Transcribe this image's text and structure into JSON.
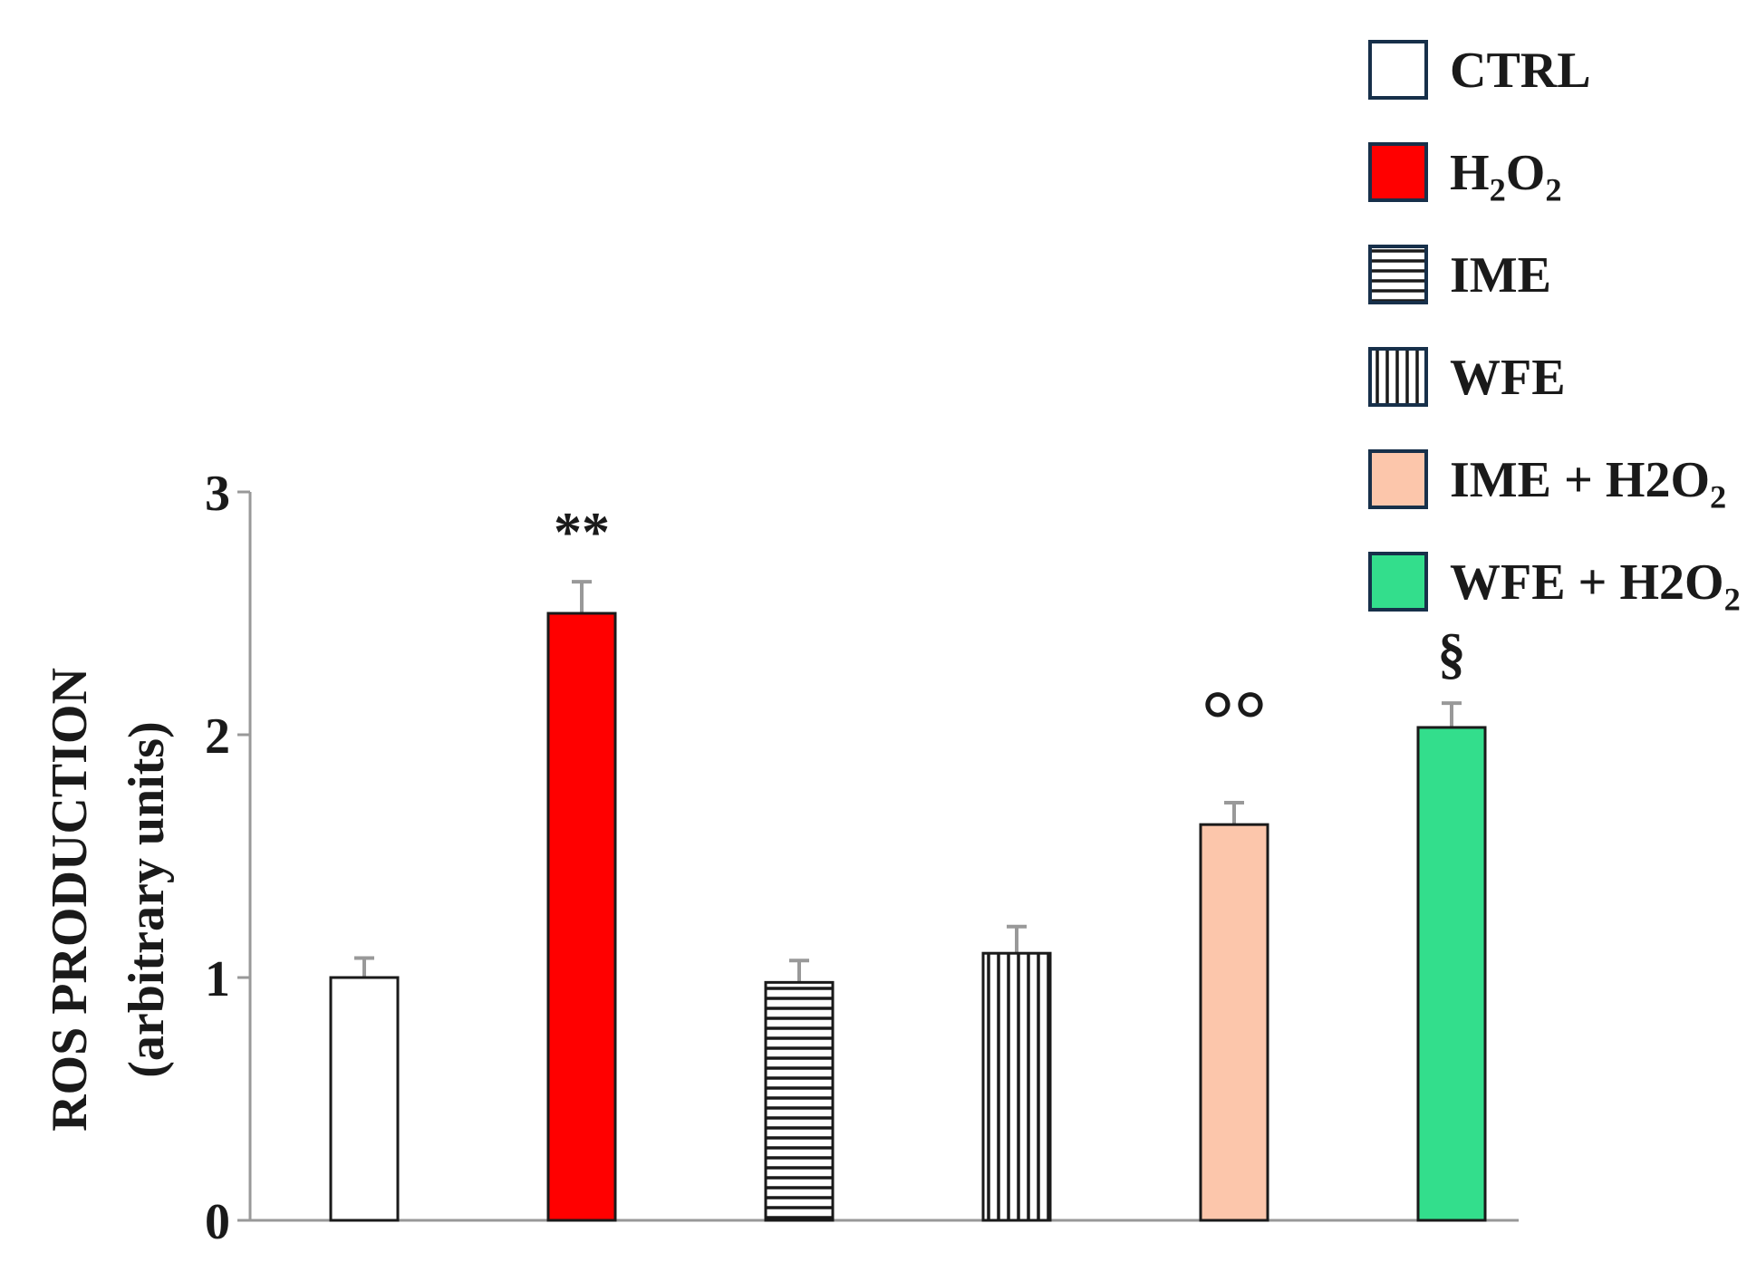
{
  "chart_data": {
    "type": "bar",
    "ylabel_line1": "ROS PRODUCTION",
    "ylabel_line2": "(arbitrary units)",
    "xlabel": "",
    "ylim": [
      0,
      3
    ],
    "yticks": [
      0,
      1,
      2,
      3
    ],
    "grid": false,
    "legend_position": "top-right",
    "categories": [
      "CTRL",
      "H2O2",
      "IME",
      "WFE",
      "IME + H2O2",
      "WFE + H2O2"
    ],
    "values": [
      1.0,
      2.5,
      0.98,
      1.1,
      1.63,
      2.03
    ],
    "errors": [
      0.08,
      0.13,
      0.09,
      0.11,
      0.09,
      0.1
    ],
    "annotations": [
      "",
      "**",
      "",
      "",
      "°°",
      "§"
    ],
    "series_styles": [
      {
        "fill": "#ffffff",
        "pattern": "none"
      },
      {
        "fill": "#ff0000",
        "pattern": "none"
      },
      {
        "fill": "#ffffff",
        "pattern": "horizontal"
      },
      {
        "fill": "#ffffff",
        "pattern": "vertical"
      },
      {
        "fill": "#fcc6ab",
        "pattern": "none"
      },
      {
        "fill": "#33de8c",
        "pattern": "none"
      }
    ],
    "legend": [
      {
        "label": "CTRL",
        "fill": "#ffffff",
        "pattern": "none"
      },
      {
        "label": "H2O2",
        "fill": "#ff0000",
        "pattern": "none"
      },
      {
        "label": "IME",
        "fill": "#ffffff",
        "pattern": "horizontal"
      },
      {
        "label": "WFE",
        "fill": "#ffffff",
        "pattern": "vertical"
      },
      {
        "label": "IME + H2O2",
        "fill": "#fcc6ab",
        "pattern": "none"
      },
      {
        "label": "WFE + H2O2",
        "fill": "#33de8c",
        "pattern": "none"
      }
    ],
    "colors": {
      "bar_border": "#1a1a1a",
      "legend_border": "#17304a",
      "axis": "#999999",
      "error_bar": "#999999",
      "text": "#1a1a1a",
      "annotation_secondary": "#555555"
    }
  }
}
